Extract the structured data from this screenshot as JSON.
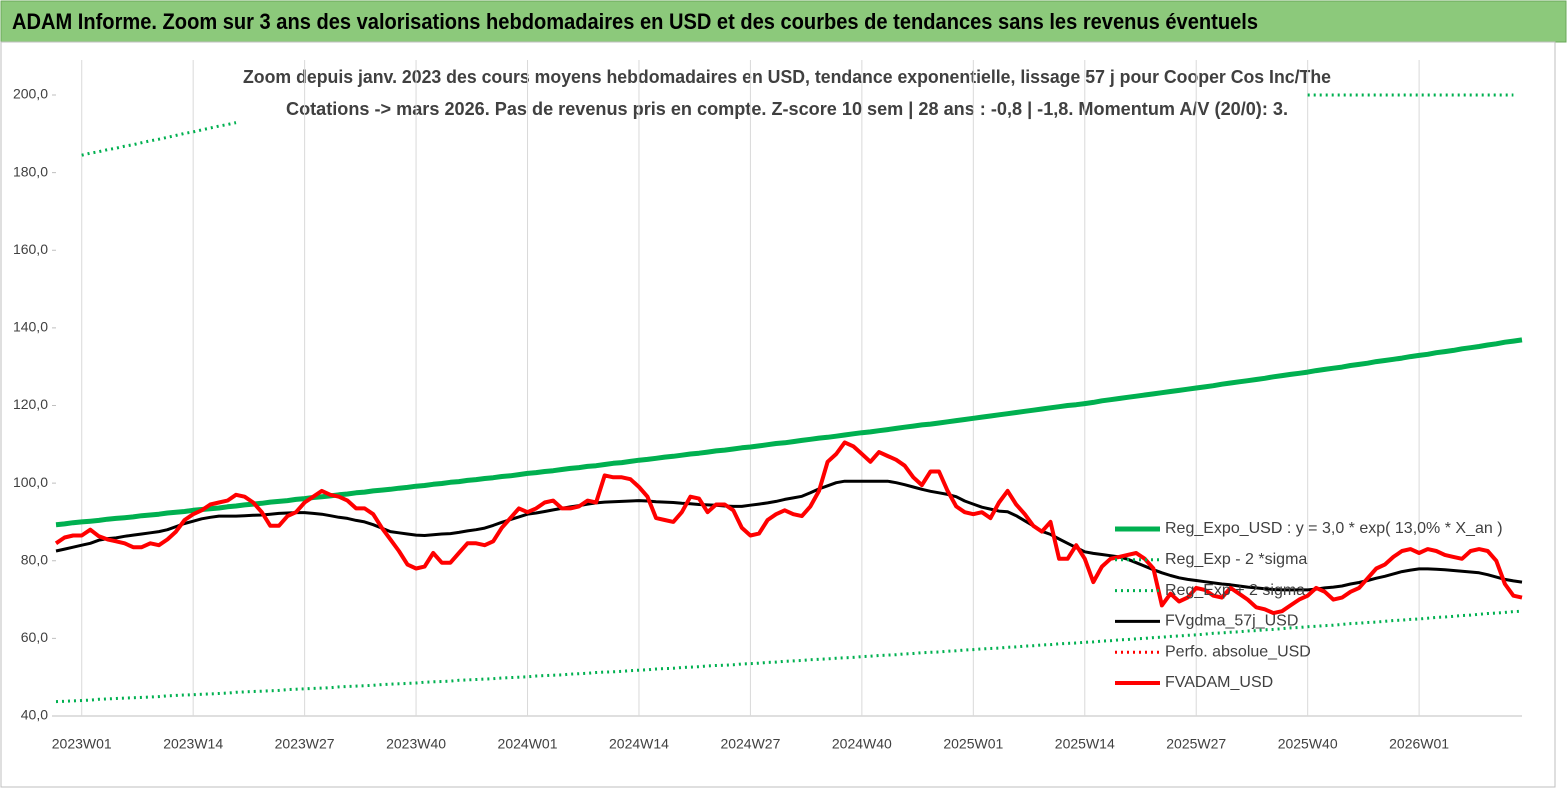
{
  "chart_data": {
    "type": "line",
    "title": "ADAM Informe. Zoom sur 3 ans des valorisations hebdomadaires en USD et des courbes de tendances sans les revenus éventuels",
    "subtitle": [
      "Zoom depuis janv. 2023 des cours moyens hebdomadaires en USD, tendance exponentielle, lissage 57 j pour Cooper Cos Inc/The",
      "Cotations -> mars 2026. Pas de revenus pris en  compte. Z-score 10 sem  | 28 ans : -0,8 | -1,8. Momentum A/V (20/0): 3."
    ],
    "ylim": [
      40,
      200
    ],
    "yticks": [
      {
        "value": 40,
        "label": "40,0"
      },
      {
        "value": 60,
        "label": "60,0"
      },
      {
        "value": 80,
        "label": "80,0"
      },
      {
        "value": 100,
        "label": "100,0"
      },
      {
        "value": 120,
        "label": "120,0"
      },
      {
        "value": 140,
        "label": "140,0"
      },
      {
        "value": 160,
        "label": "160,0"
      },
      {
        "value": 180,
        "label": "180,0"
      },
      {
        "value": 200,
        "label": "200,0"
      }
    ],
    "grid": "x",
    "legend": "right",
    "categories": [
      null,
      null,
      null,
      "2023W01",
      null,
      null,
      null,
      null,
      null,
      null,
      null,
      null,
      null,
      null,
      null,
      null,
      "2023W14",
      null,
      null,
      null,
      null,
      null,
      null,
      null,
      null,
      null,
      null,
      null,
      null,
      "2023W27",
      null,
      null,
      null,
      null,
      null,
      null,
      null,
      null,
      null,
      null,
      null,
      null,
      "2023W40",
      null,
      null,
      null,
      null,
      null,
      null,
      null,
      null,
      null,
      null,
      null,
      null,
      "2024W01",
      null,
      null,
      null,
      null,
      null,
      null,
      null,
      null,
      null,
      null,
      null,
      null,
      "2024W14",
      null,
      null,
      null,
      null,
      null,
      null,
      null,
      null,
      null,
      null,
      null,
      null,
      "2024W27",
      null,
      null,
      null,
      null,
      null,
      null,
      null,
      null,
      null,
      null,
      null,
      null,
      "2024W40",
      null,
      null,
      null,
      null,
      null,
      null,
      null,
      null,
      null,
      null,
      null,
      null,
      "2025W01",
      null,
      null,
      null,
      null,
      null,
      null,
      null,
      null,
      null,
      null,
      null,
      null,
      "2025W14",
      null,
      null,
      null,
      null,
      null,
      null,
      null,
      null,
      null,
      null,
      null,
      null,
      "2025W27",
      null,
      null,
      null,
      null,
      null,
      null,
      null,
      null,
      null,
      null,
      null,
      null,
      "2025W40",
      null,
      null,
      null,
      null,
      null,
      null,
      null,
      null,
      null,
      null,
      null,
      null,
      "2026W01",
      null,
      null,
      null,
      null,
      null,
      null,
      null,
      null,
      null,
      null,
      null,
      null
    ],
    "series": [
      {
        "name": "Reg_Expo_USD : y = 3,0 * exp( 13,0% *  X_an )",
        "color": "#00b050",
        "style": "solid",
        "width": 5,
        "values": [
          89.3,
          89.5,
          89.8,
          90.0,
          90.2,
          90.4,
          90.7,
          90.9,
          91.1,
          91.3,
          91.6,
          91.8,
          92.0,
          92.3,
          92.5,
          92.7,
          93.0,
          93.2,
          93.4,
          93.6,
          93.9,
          94.1,
          94.4,
          94.6,
          94.8,
          95.1,
          95.3,
          95.5,
          95.8,
          96.0,
          96.3,
          96.5,
          96.7,
          97.0,
          97.2,
          97.5,
          97.7,
          98.0,
          98.2,
          98.4,
          98.7,
          98.9,
          99.2,
          99.4,
          99.7,
          99.9,
          100.2,
          100.4,
          100.7,
          100.9,
          101.2,
          101.4,
          101.7,
          101.9,
          102.2,
          102.5,
          102.7,
          103.0,
          103.2,
          103.5,
          103.8,
          104.0,
          104.3,
          104.5,
          104.8,
          105.1,
          105.3,
          105.6,
          105.9,
          106.1,
          106.4,
          106.7,
          106.9,
          107.2,
          107.5,
          107.7,
          108.0,
          108.3,
          108.5,
          108.8,
          109.1,
          109.3,
          109.6,
          109.9,
          110.2,
          110.4,
          110.7,
          111.0,
          111.3,
          111.6,
          111.8,
          112.1,
          112.4,
          112.7,
          113.0,
          113.2,
          113.5,
          113.8,
          114.1,
          114.4,
          114.7,
          115.0,
          115.2,
          115.5,
          115.8,
          116.1,
          116.4,
          116.7,
          117.0,
          117.3,
          117.6,
          117.9,
          118.2,
          118.5,
          118.8,
          119.1,
          119.4,
          119.7,
          120.0,
          120.2,
          120.5,
          120.8,
          121.2,
          121.5,
          121.8,
          122.1,
          122.4,
          122.7,
          123.0,
          123.3,
          123.6,
          123.9,
          124.2,
          124.5,
          124.8,
          125.1,
          125.5,
          125.8,
          126.1,
          126.4,
          126.7,
          127.0,
          127.4,
          127.7,
          128.0,
          128.3,
          128.6,
          129.0,
          129.3,
          129.6,
          129.9,
          130.3,
          130.6,
          130.9,
          131.3,
          131.6,
          131.9,
          132.2,
          132.6,
          132.9,
          133.2,
          133.6,
          133.9,
          134.2,
          134.6,
          134.9,
          135.2,
          135.6,
          135.9,
          136.3,
          136.6,
          136.9
        ]
      },
      {
        "name": "Reg_Exp - 2 *sigma",
        "color": "#00b050",
        "style": "dotted",
        "width": 3,
        "values": [
          43.7,
          43.8,
          43.9,
          44.0,
          44.1,
          44.3,
          44.4,
          44.5,
          44.6,
          44.7,
          44.8,
          44.9,
          45.0,
          45.2,
          45.3,
          45.4,
          45.5,
          45.6,
          45.7,
          45.8,
          45.9,
          46.1,
          46.2,
          46.3,
          46.4,
          46.5,
          46.6,
          46.8,
          46.9,
          47.0,
          47.1,
          47.2,
          47.3,
          47.5,
          47.6,
          47.7,
          47.8,
          47.9,
          48.1,
          48.2,
          48.3,
          48.4,
          48.5,
          48.7,
          48.8,
          48.9,
          49.0,
          49.2,
          49.3,
          49.4,
          49.5,
          49.6,
          49.8,
          49.9,
          50.0,
          50.1,
          50.3,
          50.4,
          50.5,
          50.6,
          50.8,
          50.9,
          51.0,
          51.2,
          51.3,
          51.4,
          51.5,
          51.7,
          51.8,
          51.9,
          52.1,
          52.2,
          52.3,
          52.5,
          52.6,
          52.7,
          52.9,
          53.0,
          53.1,
          53.2,
          53.4,
          53.5,
          53.6,
          53.8,
          53.9,
          54.1,
          54.2,
          54.3,
          54.5,
          54.6,
          54.7,
          54.9,
          55.0,
          55.1,
          55.3,
          55.4,
          55.6,
          55.7,
          55.8,
          56.0,
          56.1,
          56.3,
          56.4,
          56.5,
          56.7,
          56.8,
          57.0,
          57.1,
          57.3,
          57.4,
          57.5,
          57.7,
          57.8,
          58.0,
          58.1,
          58.3,
          58.4,
          58.6,
          58.7,
          58.8,
          59.0,
          59.1,
          59.3,
          59.4,
          59.6,
          59.7,
          59.9,
          60.0,
          60.2,
          60.3,
          60.5,
          60.6,
          60.8,
          60.9,
          61.1,
          61.3,
          61.4,
          61.6,
          61.7,
          61.9,
          62.0,
          62.2,
          62.3,
          62.5,
          62.7,
          62.8,
          63.0,
          63.1,
          63.3,
          63.4,
          63.6,
          63.8,
          63.9,
          64.1,
          64.2,
          64.4,
          64.6,
          64.7,
          64.9,
          65.0,
          65.2,
          65.4,
          65.5,
          65.7,
          65.9,
          66.0,
          66.2,
          66.4,
          66.5,
          66.7,
          66.9,
          67.0
        ]
      },
      {
        "name": "Reg_Exp + 2 sigma",
        "color": "#00b050",
        "style": "dotted",
        "width": 3,
        "values": [
          null,
          null,
          null,
          184.5,
          185.0,
          185.4,
          185.9,
          186.3,
          186.8,
          187.2,
          187.7,
          188.2,
          188.6,
          189.1,
          189.6,
          190.1,
          190.5,
          191.0,
          191.5,
          192.0,
          192.4,
          192.9,
          null,
          null,
          null,
          null,
          null,
          null,
          null,
          null,
          null,
          null,
          null,
          null,
          null,
          null,
          null,
          null,
          null,
          null,
          null,
          null,
          null,
          null,
          null,
          null,
          null,
          null,
          null,
          null,
          null,
          null,
          null,
          null,
          null,
          null,
          null,
          null,
          null,
          null,
          null,
          null,
          null,
          null,
          null,
          null,
          null,
          null,
          null,
          null,
          null,
          null,
          null,
          null,
          null,
          null,
          null,
          null,
          null,
          null,
          null,
          null,
          null,
          null,
          null,
          null,
          null,
          null,
          null,
          null,
          null,
          null,
          null,
          null,
          null,
          null,
          null,
          null,
          null,
          null,
          null,
          null,
          null,
          null,
          null,
          null,
          null,
          null,
          null,
          null,
          null,
          null,
          null,
          null,
          null,
          null,
          null,
          null,
          null,
          null,
          null,
          null,
          null,
          null,
          null,
          null,
          null,
          null,
          null,
          null,
          null,
          null,
          null,
          null,
          null,
          null,
          null,
          null,
          null,
          null,
          null,
          null,
          null,
          null,
          null,
          null,
          200,
          200,
          200,
          200,
          200,
          200,
          200,
          200,
          200,
          200,
          200,
          200,
          200,
          200,
          200,
          200,
          200,
          200,
          200,
          200,
          200,
          200,
          200,
          200,
          200,
          null
        ]
      },
      {
        "name": "FVgdma_57j_USD",
        "color": "#000000",
        "style": "solid",
        "width": 3,
        "values": [
          82.5,
          83,
          83.5,
          84,
          84.5,
          85.3,
          85.7,
          85.9,
          86.3,
          86.6,
          86.9,
          87.2,
          87.5,
          88,
          88.8,
          89.6,
          90.2,
          90.8,
          91.2,
          91.5,
          91.5,
          91.5,
          91.6,
          91.7,
          91.8,
          92,
          92.2,
          92.3,
          92.4,
          92.4,
          92.2,
          92,
          91.6,
          91.2,
          90.9,
          90.4,
          90,
          89.3,
          88.4,
          87.5,
          87.2,
          86.9,
          86.6,
          86.5,
          86.7,
          86.9,
          87,
          87.3,
          87.7,
          88,
          88.4,
          89.1,
          89.9,
          90.6,
          91.3,
          92,
          92.3,
          92.7,
          93.1,
          93.5,
          93.9,
          94.2,
          94.6,
          94.9,
          95.1,
          95.2,
          95.3,
          95.4,
          95.5,
          95.4,
          95.2,
          95.1,
          95,
          94.8,
          94.7,
          94.5,
          94.4,
          94.3,
          94.1,
          94,
          94,
          94.3,
          94.6,
          94.9,
          95.3,
          95.8,
          96.2,
          96.6,
          97.5,
          98.5,
          99.3,
          100.1,
          100.5,
          100.5,
          100.5,
          100.5,
          100.5,
          100.5,
          100.1,
          99.6,
          99,
          98.4,
          97.9,
          97.5,
          97.1,
          96.5,
          95.4,
          94.6,
          93.8,
          93.3,
          92.8,
          92.6,
          91.6,
          90.3,
          89,
          87.6,
          86.8,
          85.6,
          84.5,
          83.4,
          82.3,
          81.9,
          81.6,
          81.3,
          81,
          80.4,
          79.5,
          78.6,
          77.7,
          76.9,
          76.2,
          75.6,
          75.2,
          74.9,
          74.6,
          74.3,
          74,
          73.8,
          73.5,
          73.2,
          73,
          72.8,
          72.6,
          72.5,
          72.5,
          72.5,
          72.5,
          72.7,
          73,
          73.2,
          73.5,
          74,
          74.4,
          74.9,
          75.5,
          76,
          76.6,
          77.2,
          77.6,
          77.9,
          77.9,
          77.8,
          77.7,
          77.5,
          77.3,
          77.1,
          76.9,
          76.4,
          75.8,
          75.2,
          74.8,
          74.5
        ]
      },
      {
        "name": "Perfo. absolue_USD",
        "color": "#ff0000",
        "style": "dotted",
        "width": 3
      },
      {
        "name": "FVADAM_USD",
        "color": "#ff0000",
        "style": "solid",
        "width": 4,
        "values": [
          84.5,
          86,
          86.5,
          86.5,
          88,
          86.3,
          85.5,
          85,
          84.5,
          83.5,
          83.5,
          84.5,
          84,
          85.5,
          87.5,
          90.5,
          92,
          93,
          94.5,
          95,
          95.5,
          97,
          96.5,
          95,
          92.5,
          89,
          89,
          91.5,
          92.5,
          95,
          96.5,
          98,
          97,
          96.5,
          95.5,
          93.5,
          93.5,
          92,
          88.5,
          85.5,
          82.5,
          79,
          78,
          78.5,
          82,
          79.5,
          79.5,
          82,
          84.5,
          84.5,
          84,
          85,
          88.5,
          91,
          93.5,
          92.5,
          93.5,
          95,
          95.5,
          93.5,
          93.5,
          94,
          95.5,
          95,
          102,
          101.5,
          101.5,
          101,
          99,
          96.5,
          91,
          90.5,
          90,
          92.5,
          96.5,
          96,
          92.5,
          94.5,
          94.5,
          93,
          88.5,
          86.5,
          87,
          90.5,
          92,
          93,
          92,
          91.5,
          94,
          98,
          105.5,
          107.5,
          110.5,
          109.5,
          107.5,
          105.5,
          108,
          107,
          106,
          104.5,
          101.5,
          99.5,
          103,
          103,
          98,
          94,
          92.5,
          92,
          92.5,
          91,
          95,
          98,
          94.5,
          92,
          89,
          87.5,
          90,
          80.5,
          80.5,
          84,
          80.5,
          74.5,
          78.5,
          80.5,
          81,
          81.5,
          82,
          80.5,
          78,
          68.5,
          71.5,
          69.5,
          70.5,
          73,
          72.5,
          71,
          70.5,
          73,
          71.5,
          70,
          68,
          67.5,
          66.5,
          67,
          68.5,
          70,
          71,
          73,
          72,
          70,
          70.5,
          72,
          73,
          75.5,
          78,
          79,
          81,
          82.5,
          83,
          82,
          83,
          82.5,
          81.5,
          81,
          80.5,
          82.5,
          83,
          82.5,
          80,
          74,
          71,
          70.5
        ]
      }
    ]
  }
}
